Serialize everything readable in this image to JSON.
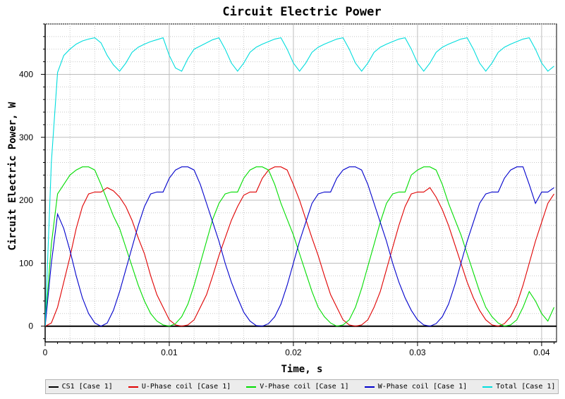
{
  "chart_data": {
    "type": "line",
    "title": "Circuit Electric Power",
    "xlabel": "Time, s",
    "ylabel": "Circuit Electric Power, W",
    "xlim": [
      0,
      0.0412
    ],
    "ylim": [
      -25,
      480
    ],
    "x_ticks": [
      0,
      0.01,
      0.02,
      0.03,
      0.04
    ],
    "x_tick_labels": [
      "0",
      "0.01",
      "0.02",
      "0.03",
      "0.04"
    ],
    "y_ticks": [
      0,
      100,
      200,
      300,
      400
    ],
    "y_tick_labels": [
      "0",
      "100",
      "200",
      "300",
      "400"
    ],
    "grid": true,
    "legend_position": "bottom",
    "series": [
      {
        "name": "CS1 [Case 1]",
        "color": "#000000",
        "x": [
          0,
          0.0412
        ],
        "y": [
          0,
          0
        ]
      },
      {
        "name": "U-Phase coil [Case 1]",
        "color": "#e00000",
        "x": [
          0,
          0.0005,
          0.001,
          0.0015,
          0.002,
          0.0025,
          0.003,
          0.0035,
          0.004,
          0.0045,
          0.005,
          0.0055,
          0.006,
          0.0065,
          0.007,
          0.0075,
          0.008,
          0.0085,
          0.009,
          0.0095,
          0.01,
          0.0105,
          0.011,
          0.0115,
          0.012,
          0.0125,
          0.013,
          0.0135,
          0.014,
          0.0145,
          0.015,
          0.0155,
          0.016,
          0.0165,
          0.017,
          0.0175,
          0.018,
          0.0185,
          0.019,
          0.0195,
          0.02,
          0.0205,
          0.021,
          0.0215,
          0.022,
          0.0225,
          0.023,
          0.0235,
          0.024,
          0.0245,
          0.025,
          0.0255,
          0.026,
          0.0265,
          0.027,
          0.0275,
          0.028,
          0.0285,
          0.029,
          0.0295,
          0.03,
          0.0305,
          0.031,
          0.0315,
          0.032,
          0.0325,
          0.033,
          0.0335,
          0.034,
          0.0345,
          0.035,
          0.0355,
          0.036,
          0.0365,
          0.037,
          0.0375,
          0.038,
          0.0385,
          0.039,
          0.0395,
          0.04,
          0.0405,
          0.041
        ],
        "y": [
          0,
          5,
          30,
          70,
          110,
          155,
          190,
          210,
          213,
          213,
          220,
          215,
          205,
          190,
          168,
          140,
          115,
          80,
          50,
          30,
          10,
          2,
          0,
          2,
          10,
          30,
          50,
          80,
          112,
          140,
          168,
          190,
          208,
          213,
          213,
          235,
          248,
          253,
          253,
          248,
          225,
          200,
          170,
          140,
          112,
          80,
          50,
          30,
          10,
          2,
          0,
          2,
          10,
          30,
          55,
          90,
          125,
          160,
          190,
          210,
          213,
          213,
          220,
          205,
          185,
          160,
          130,
          100,
          70,
          45,
          25,
          10,
          2,
          0,
          4,
          15,
          35,
          65,
          100,
          135,
          165,
          195,
          210
        ]
      },
      {
        "name": "V-Phase coil [Case 1]",
        "color": "#00dd00",
        "x": [
          0,
          0.0005,
          0.001,
          0.0015,
          0.002,
          0.0025,
          0.003,
          0.0035,
          0.004,
          0.0045,
          0.005,
          0.0055,
          0.006,
          0.0065,
          0.007,
          0.0075,
          0.008,
          0.0085,
          0.009,
          0.0095,
          0.01,
          0.0105,
          0.011,
          0.0115,
          0.012,
          0.0125,
          0.013,
          0.0135,
          0.014,
          0.0145,
          0.015,
          0.0155,
          0.016,
          0.0165,
          0.017,
          0.0175,
          0.018,
          0.0185,
          0.019,
          0.0195,
          0.02,
          0.0205,
          0.021,
          0.0215,
          0.022,
          0.0225,
          0.023,
          0.0235,
          0.024,
          0.0245,
          0.025,
          0.0255,
          0.026,
          0.0265,
          0.027,
          0.0275,
          0.028,
          0.0285,
          0.029,
          0.0295,
          0.03,
          0.0305,
          0.031,
          0.0315,
          0.032,
          0.0325,
          0.033,
          0.0335,
          0.034,
          0.0345,
          0.035,
          0.0355,
          0.036,
          0.0365,
          0.037,
          0.0375,
          0.038,
          0.0385,
          0.039,
          0.0395,
          0.04,
          0.0405,
          0.041
        ],
        "y": [
          0,
          130,
          210,
          225,
          240,
          248,
          253,
          253,
          248,
          225,
          200,
          175,
          155,
          125,
          95,
          65,
          40,
          20,
          8,
          2,
          0,
          4,
          15,
          35,
          65,
          100,
          135,
          170,
          195,
          210,
          213,
          213,
          235,
          248,
          253,
          253,
          248,
          225,
          195,
          170,
          145,
          115,
          85,
          55,
          30,
          15,
          5,
          0,
          2,
          10,
          30,
          60,
          95,
          130,
          165,
          195,
          210,
          213,
          213,
          240,
          248,
          253,
          253,
          248,
          225,
          195,
          170,
          145,
          115,
          85,
          55,
          30,
          15,
          5,
          0,
          2,
          10,
          30,
          55,
          40,
          20,
          8,
          30
        ]
      },
      {
        "name": "W-Phase coil [Case 1]",
        "color": "#0000cc",
        "x": [
          0,
          0.0005,
          0.001,
          0.0015,
          0.002,
          0.0025,
          0.003,
          0.0035,
          0.004,
          0.0045,
          0.005,
          0.0055,
          0.006,
          0.0065,
          0.007,
          0.0075,
          0.008,
          0.0085,
          0.009,
          0.0095,
          0.01,
          0.0105,
          0.011,
          0.0115,
          0.012,
          0.0125,
          0.013,
          0.0135,
          0.014,
          0.0145,
          0.015,
          0.0155,
          0.016,
          0.0165,
          0.017,
          0.0175,
          0.018,
          0.0185,
          0.019,
          0.0195,
          0.02,
          0.0205,
          0.021,
          0.0215,
          0.022,
          0.0225,
          0.023,
          0.0235,
          0.024,
          0.0245,
          0.025,
          0.0255,
          0.026,
          0.0265,
          0.027,
          0.0275,
          0.028,
          0.0285,
          0.029,
          0.0295,
          0.03,
          0.0305,
          0.031,
          0.0315,
          0.032,
          0.0325,
          0.033,
          0.0335,
          0.034,
          0.0345,
          0.035,
          0.0355,
          0.036,
          0.0365,
          0.037,
          0.0375,
          0.038,
          0.0385,
          0.039,
          0.0395,
          0.04,
          0.0405,
          0.041
        ],
        "y": [
          0,
          100,
          178,
          155,
          120,
          80,
          45,
          20,
          5,
          0,
          5,
          25,
          55,
          90,
          125,
          160,
          190,
          210,
          213,
          213,
          235,
          248,
          253,
          253,
          248,
          225,
          195,
          165,
          135,
          100,
          70,
          45,
          22,
          8,
          1,
          0,
          4,
          15,
          35,
          65,
          100,
          135,
          165,
          195,
          210,
          213,
          213,
          235,
          248,
          253,
          253,
          248,
          225,
          195,
          165,
          135,
          100,
          70,
          45,
          25,
          10,
          2,
          0,
          4,
          15,
          35,
          65,
          100,
          135,
          165,
          195,
          210,
          213,
          213,
          235,
          248,
          253,
          253,
          225,
          195,
          213,
          213,
          220
        ]
      },
      {
        "name": "Total [Case 1]",
        "color": "#00dddd",
        "x": [
          0,
          0.0005,
          0.001,
          0.0015,
          0.002,
          0.0025,
          0.003,
          0.0035,
          0.004,
          0.0045,
          0.005,
          0.0055,
          0.006,
          0.0065,
          0.007,
          0.0075,
          0.008,
          0.0085,
          0.009,
          0.0095,
          0.01,
          0.0105,
          0.011,
          0.0115,
          0.012,
          0.0125,
          0.013,
          0.0135,
          0.014,
          0.0145,
          0.015,
          0.0155,
          0.016,
          0.0165,
          0.017,
          0.0175,
          0.018,
          0.0185,
          0.019,
          0.0195,
          0.02,
          0.0205,
          0.021,
          0.0215,
          0.022,
          0.0225,
          0.023,
          0.0235,
          0.024,
          0.0245,
          0.025,
          0.0255,
          0.026,
          0.0265,
          0.027,
          0.0275,
          0.028,
          0.0285,
          0.029,
          0.0295,
          0.03,
          0.0305,
          0.031,
          0.0315,
          0.032,
          0.0325,
          0.033,
          0.0335,
          0.034,
          0.0345,
          0.035,
          0.0355,
          0.036,
          0.0365,
          0.037,
          0.0375,
          0.038,
          0.0385,
          0.039,
          0.0395,
          0.04,
          0.0405,
          0.041
        ],
        "y": [
          0,
          260,
          403,
          430,
          440,
          448,
          453,
          456,
          458,
          450,
          430,
          415,
          405,
          418,
          435,
          443,
          448,
          452,
          455,
          458,
          430,
          410,
          405,
          425,
          440,
          445,
          450,
          455,
          458,
          440,
          418,
          405,
          418,
          435,
          443,
          448,
          452,
          456,
          458,
          440,
          418,
          405,
          418,
          435,
          443,
          448,
          452,
          456,
          458,
          440,
          418,
          405,
          418,
          435,
          443,
          448,
          452,
          456,
          458,
          440,
          418,
          405,
          418,
          435,
          443,
          448,
          452,
          456,
          458,
          440,
          418,
          405,
          418,
          435,
          443,
          448,
          452,
          456,
          458,
          440,
          418,
          405,
          413
        ]
      }
    ]
  }
}
